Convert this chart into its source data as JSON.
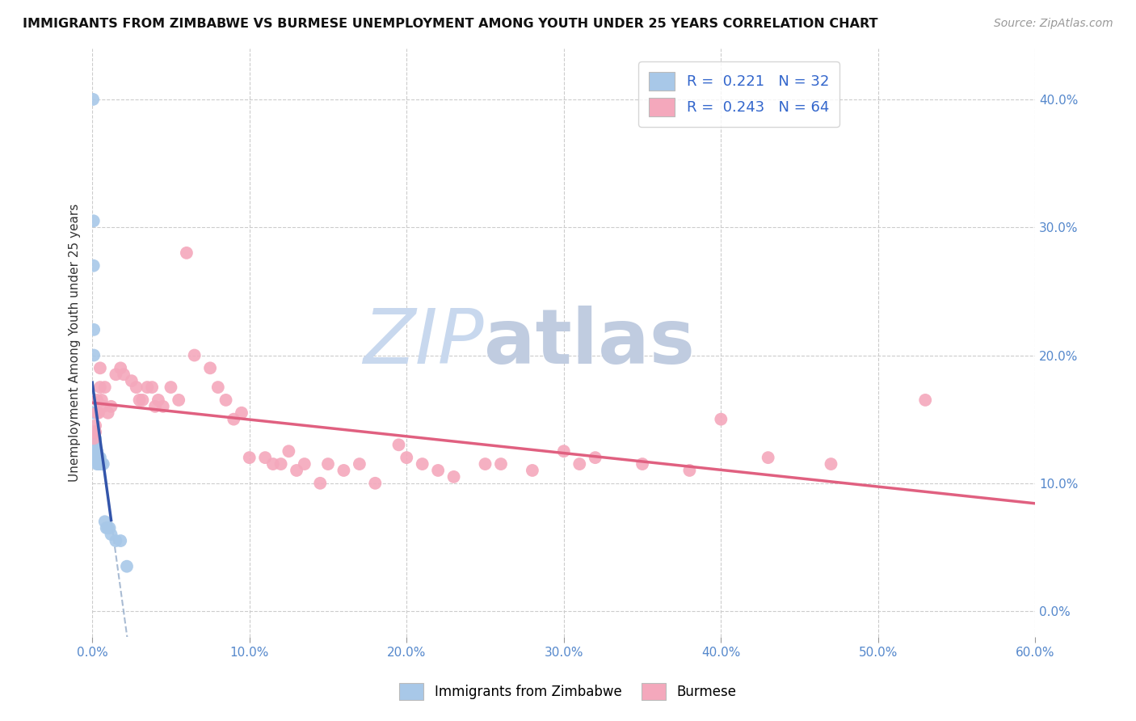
{
  "title": "IMMIGRANTS FROM ZIMBABWE VS BURMESE UNEMPLOYMENT AMONG YOUTH UNDER 25 YEARS CORRELATION CHART",
  "source": "Source: ZipAtlas.com",
  "ylabel": "Unemployment Among Youth under 25 years",
  "xlim": [
    0.0,
    0.6
  ],
  "ylim": [
    -0.02,
    0.44
  ],
  "xticks": [
    0.0,
    0.1,
    0.2,
    0.3,
    0.4,
    0.5,
    0.6
  ],
  "xticklabels": [
    "0.0%",
    "10.0%",
    "20.0%",
    "30.0%",
    "40.0%",
    "50.0%",
    "60.0%"
  ],
  "yticks_right": [
    0.0,
    0.1,
    0.2,
    0.3,
    0.4
  ],
  "yticklabels_right": [
    "0.0%",
    "10.0%",
    "20.0%",
    "30.0%",
    "40.0%"
  ],
  "legend_r1": "R =  0.221   N = 32",
  "legend_r2": "R =  0.243   N = 64",
  "color_blue": "#a8c8e8",
  "color_pink": "#f4a8bc",
  "line_blue": "#3355aa",
  "line_pink": "#e06080",
  "line_dash": "#9ab0cc",
  "watermark_zip_color": "#c8d8ee",
  "watermark_atlas_color": "#c0cce0",
  "blue_x": [
    0.0005,
    0.0008,
    0.0008,
    0.001,
    0.001,
    0.001,
    0.001,
    0.001,
    0.0015,
    0.0015,
    0.002,
    0.002,
    0.002,
    0.002,
    0.002,
    0.003,
    0.003,
    0.003,
    0.004,
    0.004,
    0.005,
    0.005,
    0.006,
    0.007,
    0.008,
    0.009,
    0.01,
    0.011,
    0.012,
    0.015,
    0.018,
    0.022
  ],
  "blue_y": [
    0.4,
    0.305,
    0.27,
    0.22,
    0.2,
    0.155,
    0.14,
    0.13,
    0.135,
    0.125,
    0.135,
    0.13,
    0.125,
    0.12,
    0.12,
    0.125,
    0.12,
    0.115,
    0.12,
    0.115,
    0.12,
    0.115,
    0.115,
    0.115,
    0.07,
    0.065,
    0.065,
    0.065,
    0.06,
    0.055,
    0.055,
    0.035
  ],
  "pink_x": [
    0.001,
    0.001,
    0.002,
    0.002,
    0.003,
    0.003,
    0.004,
    0.005,
    0.005,
    0.006,
    0.007,
    0.008,
    0.01,
    0.012,
    0.015,
    0.018,
    0.02,
    0.025,
    0.028,
    0.03,
    0.032,
    0.035,
    0.038,
    0.04,
    0.042,
    0.045,
    0.05,
    0.055,
    0.06,
    0.065,
    0.075,
    0.08,
    0.085,
    0.09,
    0.095,
    0.1,
    0.11,
    0.115,
    0.12,
    0.125,
    0.13,
    0.135,
    0.145,
    0.15,
    0.16,
    0.17,
    0.18,
    0.195,
    0.2,
    0.21,
    0.22,
    0.23,
    0.25,
    0.26,
    0.28,
    0.3,
    0.31,
    0.32,
    0.35,
    0.38,
    0.4,
    0.43,
    0.47,
    0.53
  ],
  "pink_y": [
    0.14,
    0.135,
    0.145,
    0.14,
    0.155,
    0.165,
    0.155,
    0.19,
    0.175,
    0.165,
    0.16,
    0.175,
    0.155,
    0.16,
    0.185,
    0.19,
    0.185,
    0.18,
    0.175,
    0.165,
    0.165,
    0.175,
    0.175,
    0.16,
    0.165,
    0.16,
    0.175,
    0.165,
    0.28,
    0.2,
    0.19,
    0.175,
    0.165,
    0.15,
    0.155,
    0.12,
    0.12,
    0.115,
    0.115,
    0.125,
    0.11,
    0.115,
    0.1,
    0.115,
    0.11,
    0.115,
    0.1,
    0.13,
    0.12,
    0.115,
    0.11,
    0.105,
    0.115,
    0.115,
    0.11,
    0.125,
    0.115,
    0.12,
    0.115,
    0.11,
    0.15,
    0.12,
    0.115,
    0.165
  ]
}
